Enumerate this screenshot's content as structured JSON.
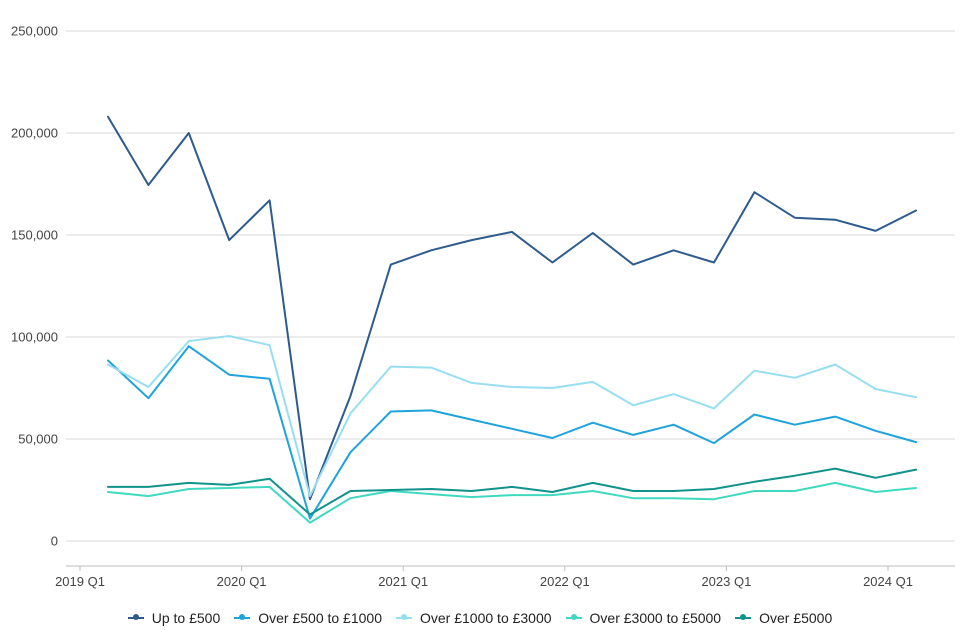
{
  "chart_data": {
    "type": "line",
    "title": "",
    "xlabel": "",
    "ylabel": "",
    "ylim": [
      0,
      250000
    ],
    "y_ticks": [
      "0",
      "50,000",
      "100,000",
      "150,000",
      "200,000",
      "250,000"
    ],
    "y_tick_values": [
      0,
      50000,
      100000,
      150000,
      200000,
      250000
    ],
    "x_tick_labels": [
      "2019 Q1",
      "2020 Q1",
      "2021 Q1",
      "2022 Q1",
      "2023 Q1",
      "2024 Q1"
    ],
    "grid": true,
    "legend_position": "bottom",
    "categories": [
      "2019 Q2",
      "2019 Q3",
      "2019 Q4",
      "2020 Q1",
      "2020 Q2",
      "2020 Q3",
      "2020 Q4",
      "2021 Q1",
      "2021 Q2",
      "2021 Q3",
      "2021 Q4",
      "2022 Q1",
      "2022 Q2",
      "2022 Q3",
      "2022 Q4",
      "2023 Q1",
      "2023 Q2",
      "2023 Q3",
      "2023 Q4",
      "2024 Q1",
      "2024 Q2"
    ],
    "series": [
      {
        "name": "Up to £500",
        "color": "#2e5b8e",
        "values": [
          208000,
          174500,
          200000,
          147500,
          167000,
          20500,
          71000,
          135500,
          142500,
          147500,
          151500,
          136500,
          151000,
          135500,
          142500,
          136500,
          171000,
          158500,
          157500,
          152000,
          162000
        ]
      },
      {
        "name": "Over £500 to £1000",
        "color": "#1fa3dc",
        "values": [
          88500,
          70000,
          95500,
          81500,
          79500,
          11000,
          43500,
          63500,
          64000,
          59500,
          55000,
          50500,
          58000,
          52000,
          57000,
          48000,
          62000,
          57000,
          61000,
          54000,
          48500
        ]
      },
      {
        "name": "Over £1000 to £3000",
        "color": "#97dff0",
        "values": [
          86500,
          75500,
          98000,
          100500,
          96000,
          22000,
          62500,
          85500,
          85000,
          77500,
          75500,
          75000,
          78000,
          66500,
          72000,
          65000,
          83500,
          80000,
          86500,
          74500,
          70500
        ]
      },
      {
        "name": "Over £3000 to £5000",
        "color": "#40d9bf",
        "values": [
          24000,
          22000,
          25500,
          26000,
          26500,
          9000,
          21000,
          24500,
          23000,
          21500,
          22500,
          22500,
          24500,
          21000,
          21000,
          20500,
          24500,
          24500,
          28500,
          24000,
          26000
        ]
      },
      {
        "name": "Over £5000",
        "color": "#10938a",
        "values": [
          26500,
          26500,
          28500,
          27500,
          30500,
          13000,
          24500,
          25000,
          25500,
          24500,
          26500,
          24000,
          28500,
          24500,
          24500,
          25500,
          29000,
          32000,
          35500,
          31000,
          35000
        ]
      }
    ]
  }
}
